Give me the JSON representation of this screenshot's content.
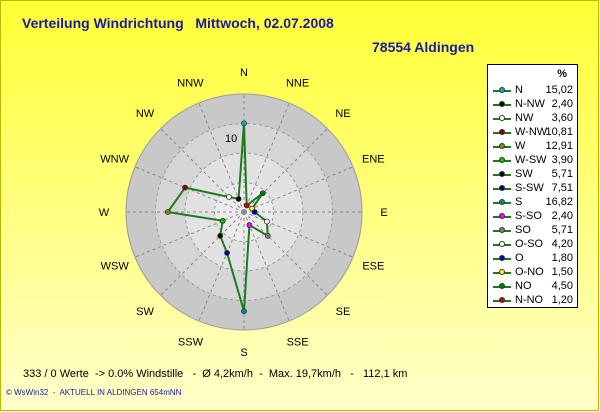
{
  "title": "Verteilung Windrichtung   Mittwoch, 02.07.2008",
  "station": "78554 Aldingen",
  "footer": "333 / 0 Werte  -> 0.0% Windstille   -  Ø 4,2km/h  -  Max. 19,7km/h   -   112,1 km",
  "credit": "© WsWin32  -  AKTUELL IN ALDINGEN 654mNN",
  "colors": {
    "line": "#1e7a1e",
    "text": "#1a1aa6"
  },
  "chart_data": {
    "type": "radar",
    "directions": [
      "N",
      "NNE",
      "NE",
      "ENE",
      "E",
      "ESE",
      "SE",
      "SSE",
      "S",
      "SSW",
      "SW",
      "WSW",
      "W",
      "WNW",
      "NW",
      "NNW"
    ],
    "ring_label": "10",
    "rmax": 20,
    "unit": "%",
    "legend_header": "%",
    "series": [
      {
        "label": "N",
        "value": 15.02,
        "color": "#00b3b3"
      },
      {
        "label": "N-NW",
        "value": 2.4,
        "color": "#000000"
      },
      {
        "label": "NW",
        "value": 3.6,
        "color": "#ffffff"
      },
      {
        "label": "W-NW",
        "value": 10.81,
        "color": "#8b0000"
      },
      {
        "label": "W",
        "value": 12.91,
        "color": "#8b8b00"
      },
      {
        "label": "W-SW",
        "value": 3.9,
        "color": "#00cc00"
      },
      {
        "label": "SW",
        "value": 5.71,
        "color": "#000000"
      },
      {
        "label": "S-SW",
        "value": 7.51,
        "color": "#00008b"
      },
      {
        "label": "S",
        "value": 16.82,
        "color": "#008b8b"
      },
      {
        "label": "S-SO",
        "value": 2.4,
        "color": "#ff00ff"
      },
      {
        "label": "SO",
        "value": 5.71,
        "color": "#808080"
      },
      {
        "label": "O-SO",
        "value": 4.2,
        "color": "#ffffff"
      },
      {
        "label": "O",
        "value": 1.8,
        "color": "#0000cc"
      },
      {
        "label": "O-NO",
        "value": 1.5,
        "color": "#ffff00"
      },
      {
        "label": "NO",
        "value": 4.5,
        "color": "#008000"
      },
      {
        "label": "N-NO",
        "value": 1.2,
        "color": "#cc0000"
      }
    ],
    "radial_values": [
      15.02,
      1.2,
      4.5,
      1.5,
      1.8,
      4.2,
      5.71,
      2.4,
      16.82,
      7.51,
      5.71,
      3.9,
      12.91,
      10.81,
      3.6,
      2.4
    ]
  }
}
